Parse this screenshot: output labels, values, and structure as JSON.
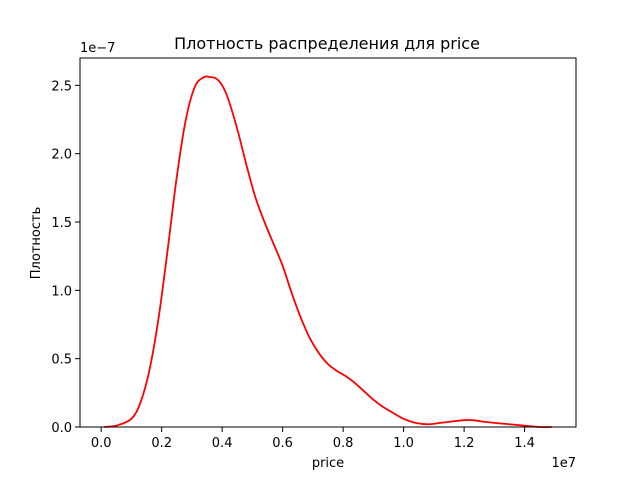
{
  "chart_data": {
    "type": "line",
    "title": "Плотность распределения для price",
    "xlabel": "price",
    "ylabel": "Плотность",
    "x_scale_label": "1e7",
    "y_scale_label": "1e−7",
    "xlim": [
      -0.07,
      1.57
    ],
    "ylim": [
      0,
      2.7
    ],
    "xticks": [
      0.0,
      0.2,
      0.4,
      0.6,
      0.8,
      1.0,
      1.2,
      1.4
    ],
    "xtick_labels": [
      "0.0",
      "0.2",
      "0.4",
      "0.6",
      "0.8",
      "1.0",
      "1.2",
      "1.4"
    ],
    "yticks": [
      0.0,
      0.5,
      1.0,
      1.5,
      2.0,
      2.5
    ],
    "ytick_labels": [
      "0.0",
      "0.5",
      "1.0",
      "1.5",
      "2.0",
      "2.5"
    ],
    "grid": false,
    "line_color": "#ff0000",
    "x": [
      0.01,
      0.05,
      0.1,
      0.13,
      0.16,
      0.19,
      0.22,
      0.25,
      0.28,
      0.31,
      0.34,
      0.36,
      0.38,
      0.4,
      0.42,
      0.45,
      0.48,
      0.51,
      0.54,
      0.57,
      0.6,
      0.63,
      0.66,
      0.69,
      0.72,
      0.75,
      0.78,
      0.81,
      0.84,
      0.87,
      0.9,
      0.93,
      0.96,
      1.0,
      1.04,
      1.08,
      1.12,
      1.16,
      1.2,
      1.23,
      1.26,
      1.3,
      1.35,
      1.4,
      1.45,
      1.49
    ],
    "y": [
      0.0,
      0.01,
      0.06,
      0.18,
      0.42,
      0.8,
      1.3,
      1.83,
      2.25,
      2.49,
      2.56,
      2.56,
      2.55,
      2.5,
      2.4,
      2.18,
      1.92,
      1.68,
      1.5,
      1.34,
      1.18,
      0.98,
      0.8,
      0.65,
      0.54,
      0.46,
      0.41,
      0.37,
      0.32,
      0.26,
      0.2,
      0.15,
      0.11,
      0.06,
      0.03,
      0.02,
      0.03,
      0.04,
      0.05,
      0.05,
      0.04,
      0.03,
      0.02,
      0.01,
      0.0,
      0.0
    ]
  }
}
